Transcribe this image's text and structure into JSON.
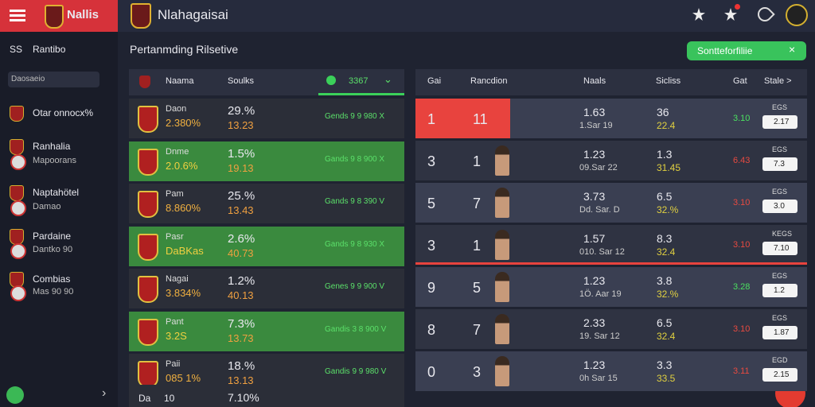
{
  "brand": "Nallis",
  "app_title": "Nlahagaisai",
  "sidebar": {
    "items": [
      {
        "label": "SS",
        "text": "Rantibo"
      },
      {
        "text": "Daosaeio"
      },
      {
        "text": "Otar onnocx%"
      },
      {
        "text": "Ranhalia",
        "sub": "Mapoorans"
      },
      {
        "text": "Naptahötel",
        "sub": "Damao"
      },
      {
        "text": "Pardaine",
        "sub": "Dantko 90"
      },
      {
        "text": "Combias",
        "sub": "Mas 90 90"
      }
    ]
  },
  "page": {
    "heading": "Pertanmding Rilsetive",
    "action_button": "Sontteforfiliie"
  },
  "left_table": {
    "header": {
      "name": "Naama",
      "score": "Soulks",
      "badge": "3367"
    },
    "rows": [
      {
        "name": "Daon",
        "sub": "2.380%",
        "pct": "29.%",
        "num": "13.23",
        "action": "Gends 9 9 980 X"
      },
      {
        "name": "Dnme",
        "sub": "2.0.6%",
        "pct": "1.5%",
        "num": "19.13",
        "action": "Gands 9 8 900 X"
      },
      {
        "name": "Pam",
        "sub": "8.860%",
        "pct": "25.%",
        "num": "13.43",
        "action": "Gands 9 8 390 V"
      },
      {
        "name": "Pasr",
        "sub": "DaBKas",
        "pct": "2.6%",
        "num": "40.73",
        "action": "Gands 9 8 930 X"
      },
      {
        "name": "Nagai",
        "sub": "3.834%",
        "pct": "1.2%",
        "num": "40.13",
        "action": "Genes 9 9 900 V"
      },
      {
        "name": "Pant",
        "sub": "3.2S",
        "pct": "7.3%",
        "num": "13.73",
        "action": "Gandis 3 8 900 V"
      },
      {
        "name": "Paii",
        "sub": "085 1%",
        "pct": "18.%",
        "num": "13.13",
        "action": "Gandis 9 9 980 V"
      }
    ],
    "footer": {
      "name": "Da",
      "num": "10",
      "pct": "7.10%"
    }
  },
  "right_table": {
    "header": [
      "Gai",
      "Rancdion",
      "Naals",
      "Sicliss",
      "Gat",
      "Stale >"
    ],
    "rows": [
      {
        "a": "1",
        "b": "11",
        "score": "1.63",
        "date": "1.Sar 19",
        "s1": "36",
        "s2": "22.4",
        "s3": "3.10",
        "btn": "2.17",
        "tag": "EGS"
      },
      {
        "a": "3",
        "b": "1",
        "score": "1.23",
        "date": "09.Sar 22",
        "s1": "1.3",
        "s2": "31.45",
        "s3": "6.43",
        "btn": "7.3",
        "tag": "EGS"
      },
      {
        "a": "5",
        "b": "7",
        "score": "3.73",
        "date": "Dd. Sar. D",
        "s1": "6.5",
        "s2": "32.%",
        "s3": "3.10",
        "btn": "3.0",
        "tag": "EGS"
      },
      {
        "a": "3",
        "b": "1",
        "score": "1.57",
        "date": "010. Sar 12",
        "s1": "8.3",
        "s2": "32.4",
        "s3": "3.10",
        "btn": "7.10",
        "tag": "KEGS"
      },
      {
        "a": "9",
        "b": "5",
        "score": "1.23",
        "date": "1Ö. Aar 19",
        "s1": "3.8",
        "s2": "32.%",
        "s3": "3.28",
        "btn": "1.2",
        "tag": "EGS"
      },
      {
        "a": "8",
        "b": "7",
        "score": "2.33",
        "date": "19. Sar 12",
        "s1": "6.5",
        "s2": "32.4",
        "s3": "3.10",
        "btn": "1.87",
        "tag": "EGS"
      },
      {
        "a": "0",
        "b": "3",
        "score": "1.23",
        "date": "0h Sar 15",
        "s1": "3.3",
        "s2": "33.5",
        "s3": "3.11",
        "btn": "2.15",
        "tag": "EGD"
      }
    ]
  }
}
